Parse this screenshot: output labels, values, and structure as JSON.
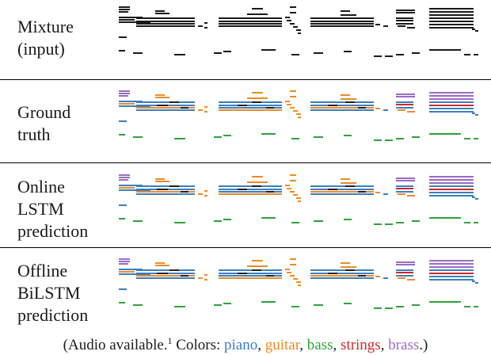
{
  "rows": [
    {
      "label_lines": [
        "Mixture",
        "(input)"
      ]
    },
    {
      "label_lines": [
        "Ground",
        "truth"
      ]
    },
    {
      "label_lines": [
        "Online",
        "LSTM",
        "prediction"
      ]
    },
    {
      "label_lines": [
        "Offline",
        "BiLSTM",
        "prediction"
      ]
    }
  ],
  "caption": {
    "prefix": "(Audio available.",
    "footnote": "1",
    "colors_label": "Colors:",
    "instruments": [
      {
        "name": "piano",
        "color": "#3a7fbf"
      },
      {
        "name": "guitar",
        "color": "#f08a24"
      },
      {
        "name": "bass",
        "color": "#2ea33a"
      },
      {
        "name": "strings",
        "color": "#cc2a2a"
      },
      {
        "name": "brass",
        "color": "#9b6bc4"
      }
    ],
    "suffix": ".)"
  },
  "colors": {
    "mixture": "#1a1a1a",
    "overlap": "#2a1a1a"
  }
}
